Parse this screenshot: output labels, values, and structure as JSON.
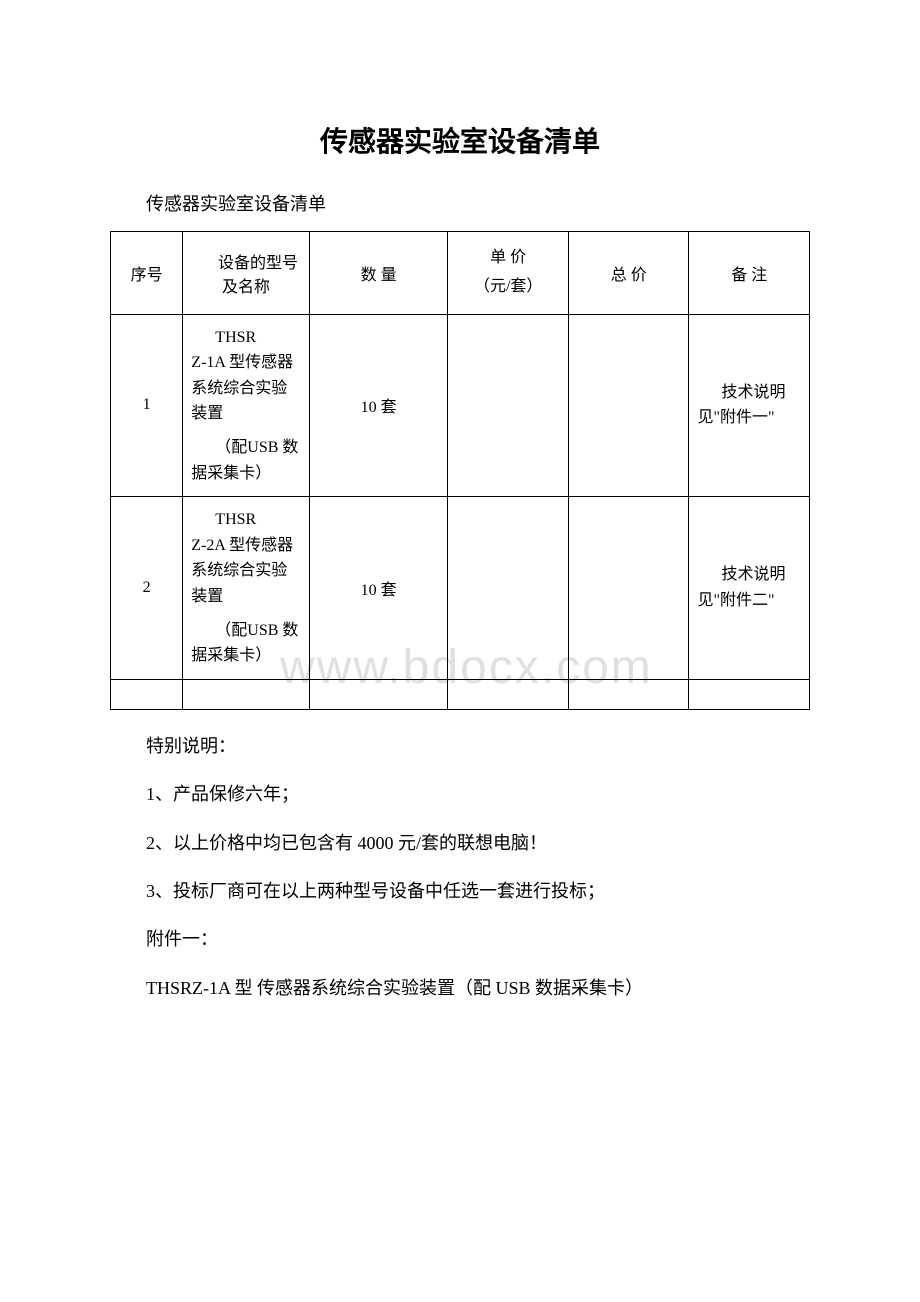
{
  "title": "传感器实验室设备清单",
  "subtitle": "传感器实验室设备清单",
  "table": {
    "headers": {
      "seq": "序号",
      "name": "设备的型号及名称",
      "qty": "数 量",
      "price_line1": "单 价",
      "price_line2": "（元/套）",
      "total": "总 价",
      "note": "备 注"
    },
    "rows": [
      {
        "seq": "1",
        "name_line1": "THSR",
        "name_line2": "Z-1A 型传感器系统综合实验装置",
        "name_line3": "（配USB 数据采集卡）",
        "qty": "10 套",
        "price": "",
        "total": "",
        "note": "技术说明见\"附件一\""
      },
      {
        "seq": "2",
        "name_line1": "THSR",
        "name_line2": "Z-2A 型传感器系统综合实验装置",
        "name_line3": "（配USB 数据采集卡）",
        "qty": "10 套",
        "price": "",
        "total": "",
        "note": "技术说明见\"附件二\""
      }
    ]
  },
  "notes": {
    "heading": "特别说明：",
    "item1": "1、产品保修六年；",
    "item2": "2、以上价格中均已包含有 4000 元/套的联想电脑！",
    "item3": "3、投标厂商可在以上两种型号设备中任选一套进行投标；",
    "attach_label": "附件一：",
    "attach_desc": "THSRZ-1A 型 传感器系统综合实验装置（配 USB 数据采集卡）"
  },
  "watermark": "www.bdocx.com"
}
